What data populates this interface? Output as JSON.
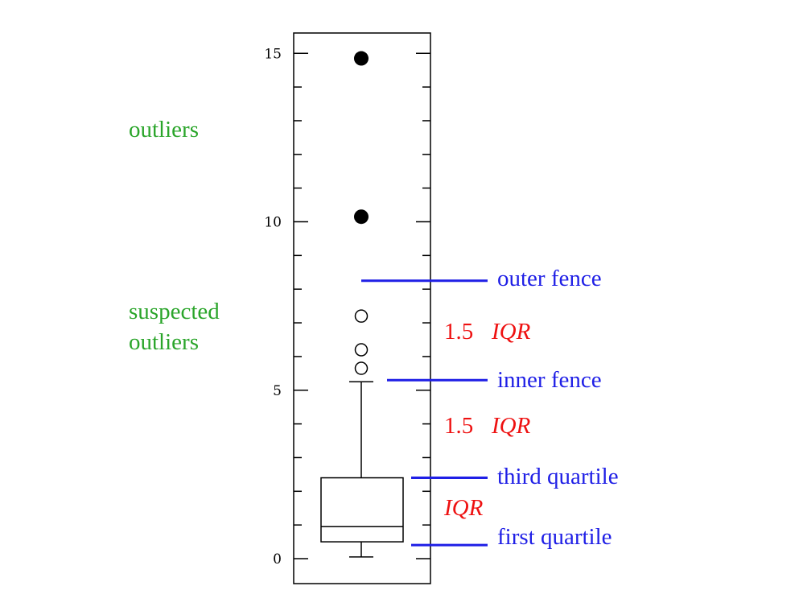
{
  "chart_data": {
    "type": "box",
    "ylim": [
      0,
      16
    ],
    "yticks": [
      0,
      5,
      10,
      15
    ],
    "box": {
      "min": 0.05,
      "q1": 0.5,
      "median": 0.95,
      "q3": 2.4,
      "whisker_high": 5.25
    },
    "suspected_outliers": [
      5.65,
      6.2,
      7.2
    ],
    "outliers": [
      10.15,
      14.85
    ],
    "inner_fence": 5.3,
    "outer_fence": 8.25,
    "annotations": {
      "outliers": "outliers",
      "suspected_line1": "suspected",
      "suspected_line2": "outliers",
      "outer_fence": "outer fence",
      "inner_fence": "inner fence",
      "third_quartile": "third quartile",
      "first_quartile": "first quartile",
      "iqr_multiplier": "1.5",
      "iqr": "IQR"
    },
    "colors": {
      "outlier_label": "#2aa52a",
      "fence_label": "#1f1fe6",
      "iqr_label": "#ee1111"
    }
  }
}
